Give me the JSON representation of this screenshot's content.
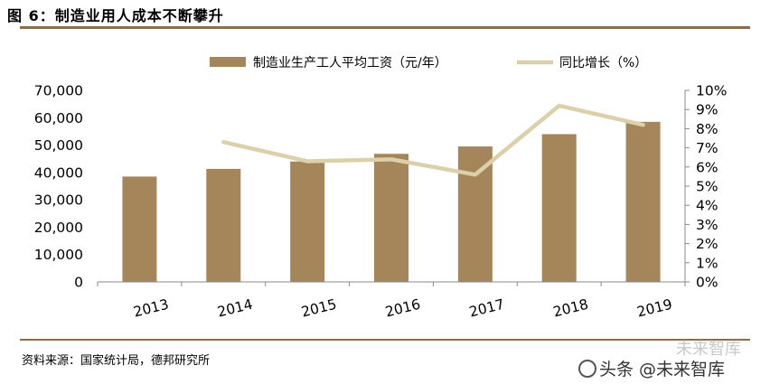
{
  "figure": {
    "title": "图 6：制造业用人成本不断攀升",
    "source": "资料来源：国家统计局，德邦研究所",
    "watermark": "头条 @未来智库",
    "watermark_faint": "未来智库"
  },
  "colors": {
    "bar": "#a5865a",
    "line": "#dcd0aa",
    "rule": "#8c6f49",
    "axis": "#8a8a8a"
  },
  "chart_data": {
    "type": "bar",
    "title": "",
    "categories": [
      "2013",
      "2014",
      "2015",
      "2016",
      "2017",
      "2018",
      "2019"
    ],
    "series": [
      {
        "name": "制造业生产工人平均工资（元/年）",
        "type": "bar",
        "axis": "left",
        "values": [
          38500,
          41300,
          44000,
          46800,
          49500,
          54000,
          58500
        ]
      },
      {
        "name": "同比增长（%）",
        "type": "line",
        "axis": "right",
        "values": [
          null,
          7.3,
          6.3,
          6.4,
          5.6,
          9.2,
          8.2
        ]
      }
    ],
    "y_left": {
      "lim": [
        0,
        70000
      ],
      "ticks": [
        "0",
        "10,000",
        "20,000",
        "30,000",
        "40,000",
        "50,000",
        "60,000",
        "70,000"
      ]
    },
    "y_right": {
      "lim": [
        0,
        10
      ],
      "ticks": [
        "0%",
        "1%",
        "2%",
        "3%",
        "4%",
        "5%",
        "6%",
        "7%",
        "8%",
        "9%",
        "10%"
      ]
    },
    "legend": "top",
    "grid": false
  }
}
